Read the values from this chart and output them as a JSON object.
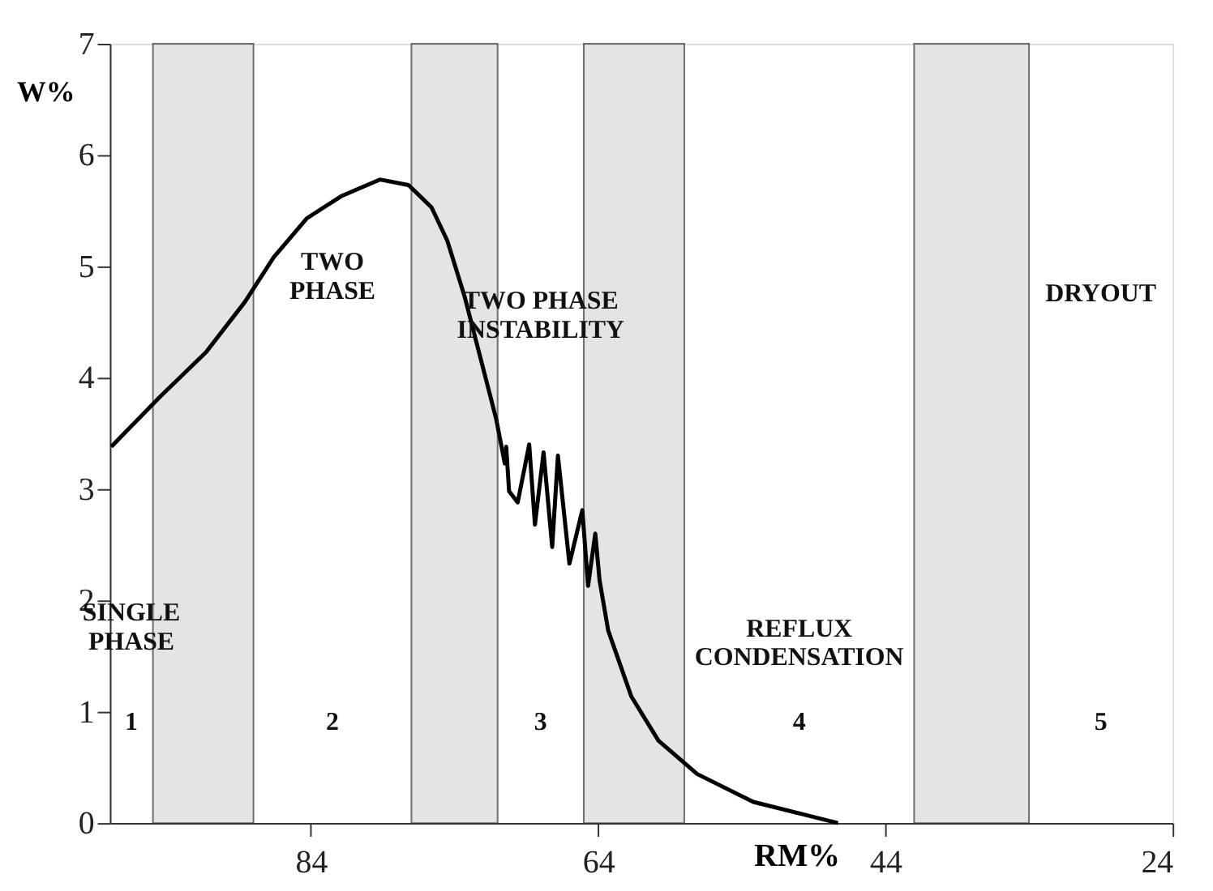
{
  "chart_data": {
    "type": "line",
    "xlabel": "RM%",
    "ylabel": "W%",
    "xlim": [
      98,
      24
    ],
    "xticks": [
      84,
      64,
      44,
      24
    ],
    "ylim": [
      0,
      7
    ],
    "yticks": [
      0,
      1,
      2,
      3,
      4,
      5,
      6,
      7
    ],
    "grid": false,
    "marker": "none",
    "line_style": "solid",
    "series": [
      {
        "color": "#000000",
        "x": [
          97.9,
          94.5,
          91.3,
          88.6,
          86.6,
          84.3,
          81.9,
          79.2,
          77.2,
          75.6,
          74.5,
          73.3,
          72.1,
          71.1,
          70.5,
          70.4,
          70.2,
          69.6,
          68.8,
          68.4,
          67.8,
          67.2,
          66.8,
          66.0,
          65.1,
          64.7,
          64.2,
          63.9,
          63.3,
          61.7,
          59.8,
          57.1,
          53.2,
          47.3
        ],
        "values": [
          3.38,
          3.83,
          4.23,
          4.68,
          5.08,
          5.43,
          5.63,
          5.78,
          5.73,
          5.53,
          5.23,
          4.73,
          4.13,
          3.63,
          3.23,
          3.38,
          2.98,
          2.88,
          3.4,
          2.68,
          3.33,
          2.48,
          3.3,
          2.33,
          2.81,
          2.13,
          2.6,
          2.18,
          1.73,
          1.14,
          0.74,
          0.44,
          0.19,
          0
        ]
      }
    ],
    "bands": [
      {
        "axis": "x",
        "from": 95,
        "to": 88,
        "label": null,
        "color": "#d9d9d9"
      },
      {
        "axis": "x",
        "from": 77,
        "to": 71,
        "label": null,
        "color": "#d9d9d9"
      },
      {
        "axis": "x",
        "from": 65,
        "to": 58,
        "label": null,
        "color": "#d9d9d9"
      },
      {
        "axis": "x",
        "from": 42,
        "to": 34,
        "label": null,
        "color": "#d9d9d9"
      }
    ],
    "annotations": [
      "SINGLE\nPHASE",
      "1",
      "TWO\nPHASE",
      "2",
      "TWO PHASE\nINSTABILITY",
      "3",
      "REFLUX\nCONDENSATION",
      "4",
      "DRYOUT",
      "5"
    ]
  }
}
